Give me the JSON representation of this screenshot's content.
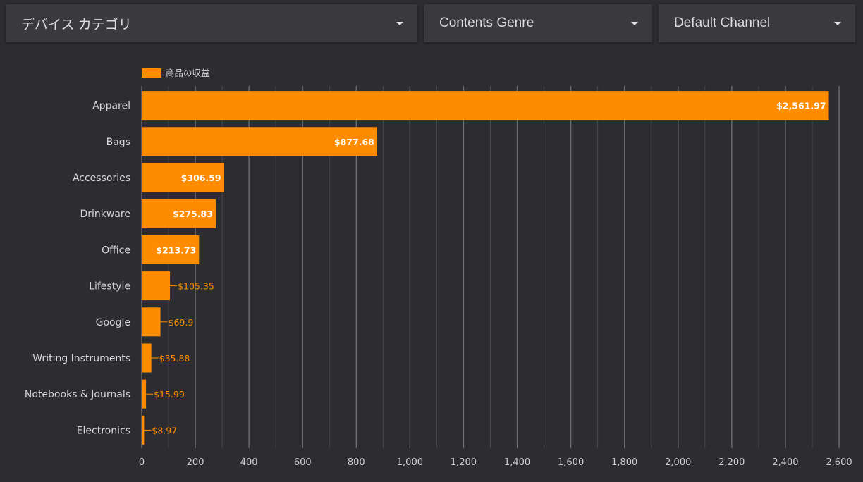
{
  "filters": {
    "device_category": "デバイス カテゴリ",
    "contents_genre": "Contents Genre",
    "default_channel": "Default Channel"
  },
  "colors": {
    "background": "#2d2c30",
    "bar": "#ff8c00",
    "grid": "#6e6d72"
  },
  "chart_data": {
    "type": "bar",
    "orientation": "horizontal",
    "legend_position": "top-left",
    "grid": true,
    "categories": [
      "Apparel",
      "Bags",
      "Accessories",
      "Drinkware",
      "Office",
      "Lifestyle",
      "Google",
      "Writing Instruments",
      "Notebooks & Journals",
      "Electronics"
    ],
    "series": [
      {
        "name": "商品の収益",
        "values": [
          2561.97,
          877.68,
          306.59,
          275.83,
          213.73,
          105.35,
          69.9,
          35.88,
          15.99,
          8.97
        ],
        "labels": [
          "$2,561.97",
          "$877.68",
          "$306.59",
          "$275.83",
          "$213.73",
          "$105.35",
          "$69.9",
          "$35.88",
          "$15.99",
          "$8.97"
        ]
      }
    ],
    "xlim": [
      0,
      2600
    ],
    "xticks": [
      0,
      200,
      400,
      600,
      800,
      1000,
      1200,
      1400,
      1600,
      1800,
      2000,
      2200,
      2400,
      2600
    ],
    "xtick_labels": [
      "0",
      "200",
      "400",
      "600",
      "800",
      "1,000",
      "1,200",
      "1,400",
      "1,600",
      "1,800",
      "2,000",
      "2,200",
      "2,400",
      "2,600"
    ]
  }
}
